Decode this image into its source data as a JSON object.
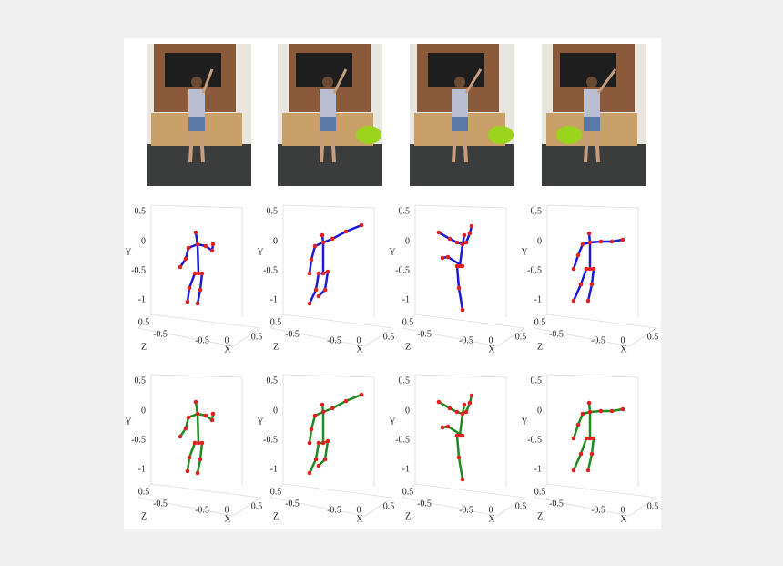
{
  "figure": {
    "panels": [
      {
        "bone_color": "#1a1ad8",
        "joint_color": "#e02020",
        "yticks": [
          "0.5",
          "0",
          "-0.5",
          "-1"
        ],
        "ylabel": "Y",
        "zticks": [
          "0.5",
          "-0.5"
        ],
        "zlabel": "Z",
        "xticks": [
          "-0.5",
          "0",
          "0.5"
        ],
        "xlabel": "X"
      },
      {
        "bone_color": "#1a1ad8",
        "joint_color": "#e02020",
        "yticks": [
          "0.5",
          "0",
          "-0.5",
          "-1"
        ],
        "ylabel": "Y",
        "zticks": [
          "0.5",
          "-0.5"
        ],
        "zlabel": "Z",
        "xticks": [
          "-0.5",
          "0",
          "0.5"
        ],
        "xlabel": "X"
      },
      {
        "bone_color": "#1a1ad8",
        "joint_color": "#e02020",
        "yticks": [
          "0.5",
          "0",
          "-0.5",
          "-1"
        ],
        "ylabel": "Y",
        "zticks": [
          "0.5",
          "-0.5"
        ],
        "zlabel": "Z",
        "xticks": [
          "-0.5",
          "0",
          "0.5"
        ],
        "xlabel": "X"
      },
      {
        "bone_color": "#1a1ad8",
        "joint_color": "#e02020",
        "yticks": [
          "0.5",
          "0",
          "-0.5",
          "-1"
        ],
        "ylabel": "Y",
        "zticks": [
          "0.5",
          "-0.5"
        ],
        "zlabel": "Z",
        "xticks": [
          "-0.5",
          "0",
          "0.5"
        ],
        "xlabel": "X"
      },
      {
        "bone_color": "#1f8a1f",
        "joint_color": "#e02020",
        "yticks": [
          "0.5",
          "0",
          "-0.5",
          "-1"
        ],
        "ylabel": "Y",
        "zticks": [
          "0.5",
          "-0.5"
        ],
        "zlabel": "Z",
        "xticks": [
          "-0.5",
          "0",
          "0.5"
        ],
        "xlabel": "X"
      },
      {
        "bone_color": "#1f8a1f",
        "joint_color": "#e02020",
        "yticks": [
          "0.5",
          "0",
          "-0.5",
          "-1"
        ],
        "ylabel": "Y",
        "zticks": [
          "0.5",
          "-0.5"
        ],
        "zlabel": "Z",
        "xticks": [
          "-0.5",
          "0",
          "0.5"
        ],
        "xlabel": "X"
      },
      {
        "bone_color": "#1f8a1f",
        "joint_color": "#e02020",
        "yticks": [
          "0.5",
          "0",
          "-0.5",
          "-1"
        ],
        "ylabel": "Y",
        "zticks": [
          "0.5",
          "-0.5"
        ],
        "zlabel": "Z",
        "xticks": [
          "-0.5",
          "0",
          "0.5"
        ],
        "xlabel": "X"
      },
      {
        "bone_color": "#1f8a1f",
        "joint_color": "#e02020",
        "yticks": [
          "0.5",
          "0",
          "-0.5",
          "-1"
        ],
        "ylabel": "Y",
        "zticks": [
          "0.5",
          "-0.5"
        ],
        "zlabel": "Z",
        "xticks": [
          "-0.5",
          "0",
          "0.5"
        ],
        "xlabel": "X"
      }
    ]
  }
}
